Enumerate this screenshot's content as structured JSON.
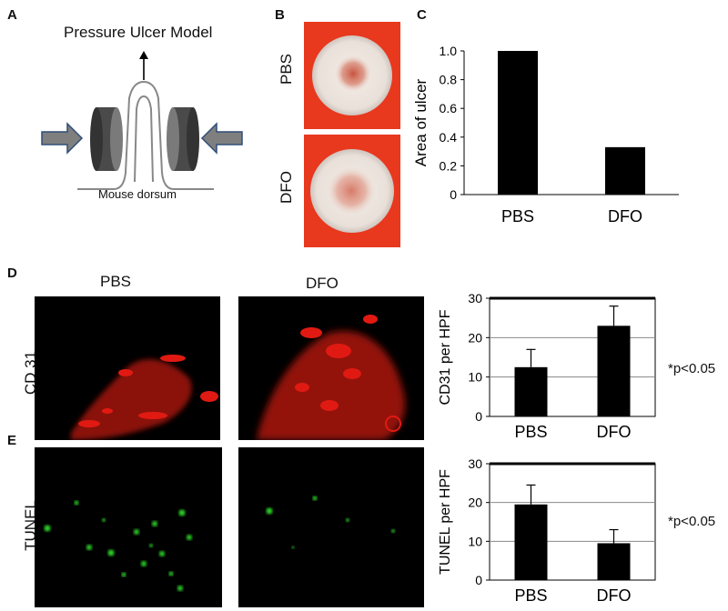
{
  "panels": {
    "A": {
      "letter": "A",
      "title": "Pressure Ulcer Model",
      "caption": "Mouse dorsum"
    },
    "B": {
      "letter": "B",
      "row1": "PBS",
      "row2": "DFO"
    },
    "C": {
      "letter": "C"
    },
    "D": {
      "letter": "D",
      "col1": "PBS",
      "col2": "DFO",
      "row_label": "CD 31",
      "stat": "*p<0.05"
    },
    "E": {
      "letter": "E",
      "row_label": "TUNEL",
      "stat": "*p<0.05"
    }
  },
  "colors": {
    "bar": "#000000",
    "arrow_fill": "#7f7f7f",
    "arrow_stroke": "#2f4e79",
    "dish_bg": "#e8381e",
    "cd31_stain": "#e01a12",
    "tunel_stain": "#2fe02a",
    "micrograph_bg": "#000000"
  },
  "chart_data": [
    {
      "id": "C",
      "type": "bar",
      "categories": [
        "PBS",
        "DFO"
      ],
      "values": [
        1.0,
        0.33
      ],
      "ylabel": "Area of ulcer",
      "ylim": [
        0,
        1.0
      ],
      "yticks": [
        "0",
        "0.2",
        "0.4",
        "0.6",
        "0.8",
        "1.0"
      ],
      "grid": false
    },
    {
      "id": "D",
      "type": "bar",
      "categories": [
        "PBS",
        "DFO"
      ],
      "values": [
        12.5,
        23
      ],
      "errors": [
        4.5,
        5
      ],
      "ylabel": "CD31 per HPF",
      "ylim": [
        0,
        30
      ],
      "yticks": [
        "0",
        "10",
        "20",
        "30"
      ],
      "grid": true
    },
    {
      "id": "E",
      "type": "bar",
      "categories": [
        "PBS",
        "DFO"
      ],
      "values": [
        19.5,
        9.5
      ],
      "errors": [
        5,
        3.5
      ],
      "ylabel": "TUNEL per HPF",
      "ylim": [
        0,
        30
      ],
      "yticks": [
        "0",
        "10",
        "20",
        "30"
      ],
      "grid": true
    }
  ]
}
